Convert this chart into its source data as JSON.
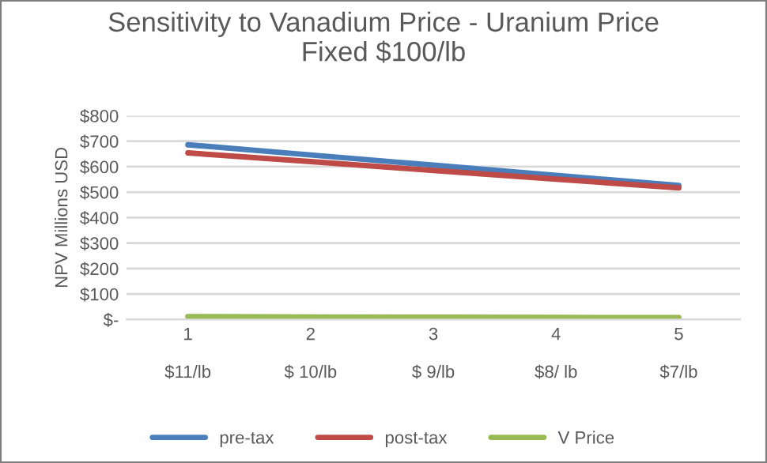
{
  "chart_data": {
    "type": "line",
    "title": "Sensitivity to Vanadium Price - Uranium Price\nFixed $100/lb",
    "ylabel": "NPV Millions USD",
    "categories": [
      "1\n\n$11/lb",
      "2\n\n$ 10/lb",
      "3\n\n$ 9/lb",
      "4\n\n$8/ lb",
      "5\n\n$7/lb"
    ],
    "series": [
      {
        "name": "pre-tax",
        "color": "#4a7ebb",
        "values": [
          686,
          646,
          606,
          566,
          526
        ]
      },
      {
        "name": "post-tax",
        "color": "#be4b48",
        "values": [
          654,
          620,
          585,
          551,
          517
        ]
      },
      {
        "name": "V Price",
        "color": "#98b954",
        "values": [
          11,
          10,
          9,
          8,
          7
        ]
      }
    ],
    "ylim": [
      0,
      800
    ],
    "yticks": [
      {
        "value": 0,
        "label": "$-"
      },
      {
        "value": 100,
        "label": "$100"
      },
      {
        "value": 200,
        "label": "$200"
      },
      {
        "value": 300,
        "label": "$300"
      },
      {
        "value": 400,
        "label": "$400"
      },
      {
        "value": 500,
        "label": "$500"
      },
      {
        "value": 600,
        "label": "$600"
      },
      {
        "value": 700,
        "label": "$700"
      },
      {
        "value": 800,
        "label": "$800"
      }
    ],
    "grid": "y",
    "legend": "bottom",
    "marker": "none",
    "line_style": "solid"
  }
}
